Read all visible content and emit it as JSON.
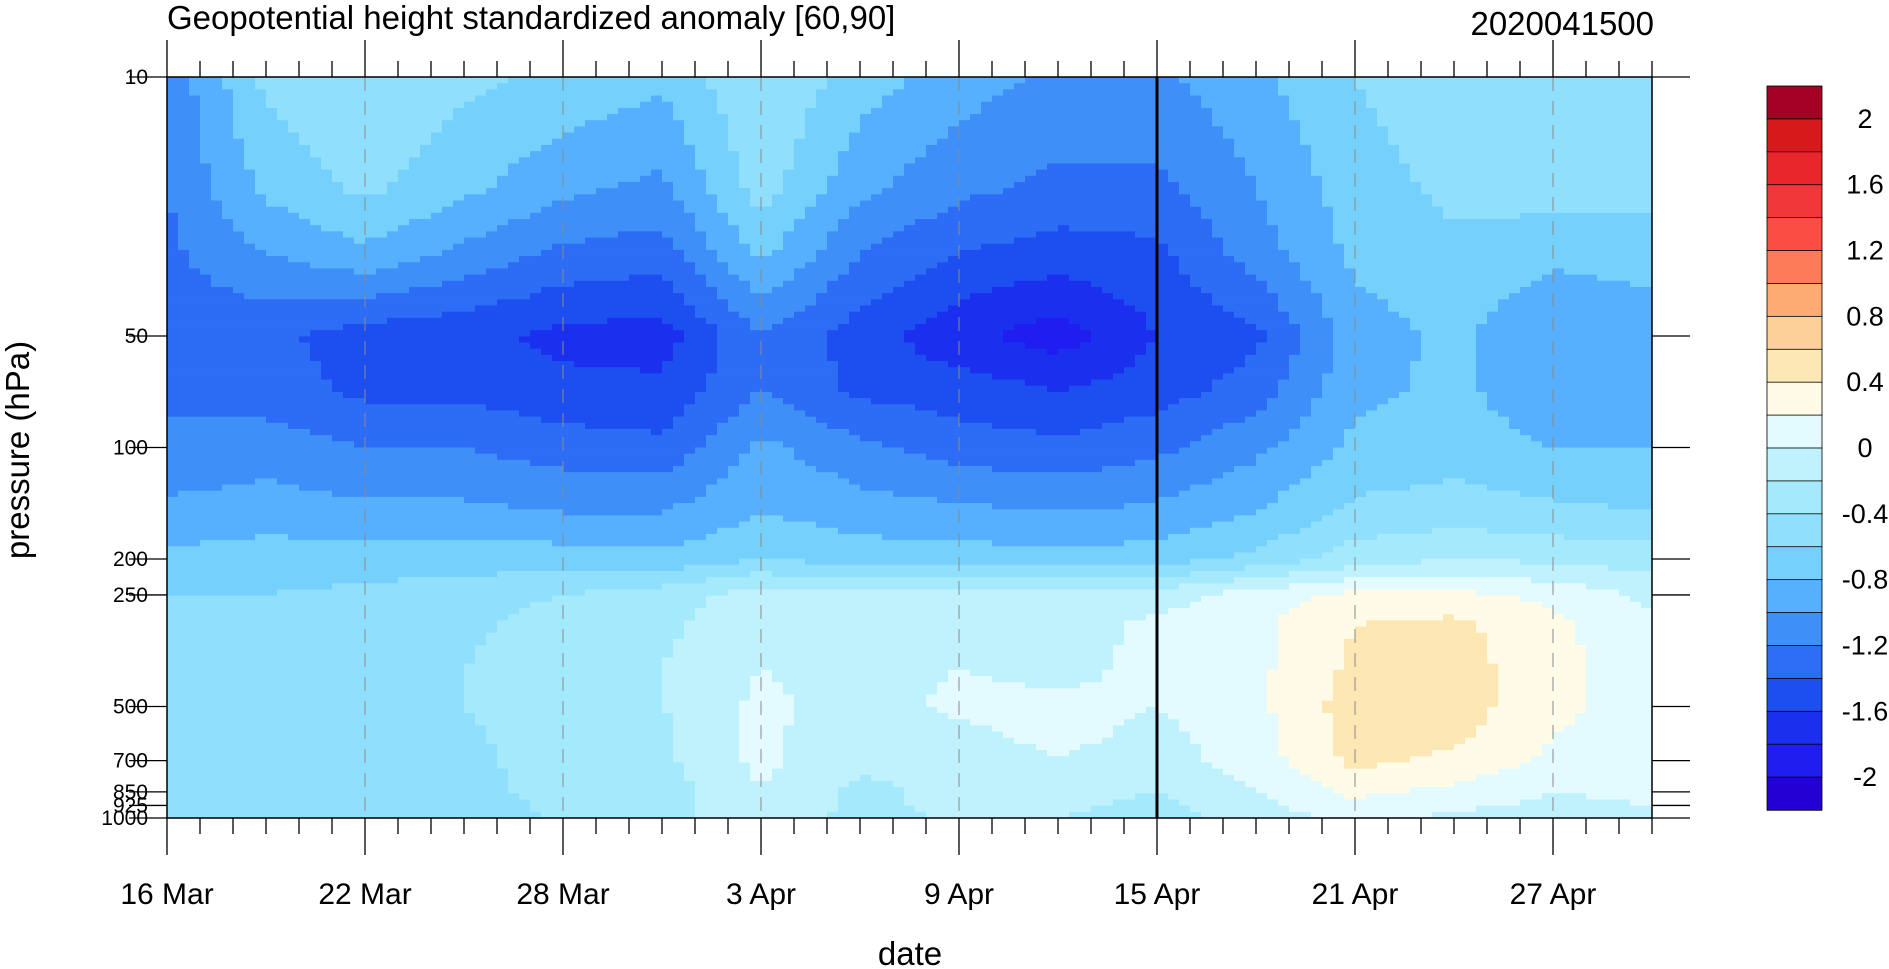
{
  "chart_data": {
    "type": "heatmap",
    "title": "Geopotential height standardized anomaly [60,90]",
    "subtitle_right": "2020041500",
    "xlabel": "date",
    "ylabel": "pressure (hPa)",
    "x_tick_labels": [
      "16 Mar",
      "22 Mar",
      "28 Mar",
      "3 Apr",
      "9 Apr",
      "15 Apr",
      "21 Apr",
      "27 Apr"
    ],
    "x_tick_days": [
      0,
      6,
      12,
      18,
      24,
      30,
      36,
      42
    ],
    "x_range_days": [
      0,
      45
    ],
    "analysis_day": 30,
    "pressure_levels": [
      10,
      20,
      30,
      50,
      70,
      100,
      150,
      200,
      250,
      300,
      400,
      500,
      600,
      700,
      850,
      925,
      1000
    ],
    "y_tick_labels": [
      "10",
      "50",
      "100",
      "200",
      "250",
      "500",
      "700",
      "850",
      "925",
      "1000"
    ],
    "y_tick_values": [
      10,
      50,
      100,
      200,
      250,
      500,
      700,
      850,
      925,
      1000
    ],
    "y_scale": "log-pressure",
    "grid": "dashed vertical lines at date ticks",
    "colorbar": {
      "labels": [
        "2",
        "1.6",
        "1.2",
        "0.8",
        "0.4",
        "0",
        "-0.4",
        "-0.8",
        "-1.2",
        "-1.6",
        "-2"
      ],
      "label_values": [
        2,
        1.6,
        1.2,
        0.8,
        0.4,
        0,
        -0.4,
        -0.8,
        -1.2,
        -1.6,
        -2
      ],
      "levels": [
        2.2,
        2.0,
        1.8,
        1.6,
        1.4,
        1.2,
        1.0,
        0.8,
        0.6,
        0.4,
        0.2,
        0,
        -0.2,
        -0.4,
        -0.6,
        -0.8,
        -1.0,
        -1.2,
        -1.4,
        -1.6,
        -1.8,
        -2.0,
        -2.2
      ],
      "colors": [
        "#a50026",
        "#d7191c",
        "#e8262b",
        "#f2373a",
        "#fc4d44",
        "#fe7b5a",
        "#fdab72",
        "#fdd09a",
        "#fde7b5",
        "#fffbe6",
        "#e3fbfe",
        "#bff2fc",
        "#a5e9fd",
        "#90e0fd",
        "#75d1fc",
        "#56b0fd",
        "#3f8ff9",
        "#2d6cf5",
        "#1d4ff0",
        "#1b30ef",
        "#1f1df0",
        "#2400d4"
      ]
    },
    "series": [
      {
        "days": [
          0,
          3,
          6,
          9,
          12,
          15,
          18,
          21,
          24,
          27,
          30,
          33,
          36,
          39,
          42,
          45
        ],
        "values": [
          [
            -1.15,
            -0.55,
            -0.4,
            -0.55,
            -0.65,
            -0.75,
            -0.4,
            -0.7,
            -0.9,
            -1.05,
            -1.05,
            -0.85,
            -0.6,
            -0.45,
            -0.4,
            -0.45
          ],
          [
            -1.2,
            -0.75,
            -0.55,
            -0.75,
            -0.95,
            -1.05,
            -0.5,
            -0.95,
            -1.15,
            -1.25,
            -1.25,
            -1.0,
            -0.7,
            -0.55,
            -0.5,
            -0.55
          ],
          [
            -1.25,
            -1.0,
            -0.85,
            -1.05,
            -1.25,
            -1.3,
            -0.75,
            -1.2,
            -1.4,
            -1.5,
            -1.45,
            -1.1,
            -0.75,
            -0.65,
            -0.75,
            -0.7
          ],
          [
            -1.3,
            -1.35,
            -1.5,
            -1.55,
            -1.65,
            -1.7,
            -1.2,
            -1.5,
            -1.75,
            -1.9,
            -1.6,
            -1.45,
            -0.9,
            -0.75,
            -1.0,
            -0.95
          ],
          [
            -1.25,
            -1.3,
            -1.45,
            -1.45,
            -1.55,
            -1.55,
            -1.2,
            -1.45,
            -1.5,
            -1.6,
            -1.5,
            -1.3,
            -0.85,
            -0.75,
            -0.95,
            -0.9
          ],
          [
            -1.15,
            -1.1,
            -1.2,
            -1.2,
            -1.3,
            -1.35,
            -0.95,
            -1.15,
            -1.3,
            -1.35,
            -1.25,
            -1.05,
            -0.75,
            -0.7,
            -0.8,
            -0.8
          ],
          [
            -0.95,
            -0.9,
            -0.95,
            -0.95,
            -1.0,
            -1.0,
            -0.8,
            -0.9,
            -0.95,
            -1.0,
            -0.95,
            -0.8,
            -0.55,
            -0.5,
            -0.55,
            -0.6
          ],
          [
            -0.75,
            -0.7,
            -0.7,
            -0.7,
            -0.7,
            -0.75,
            -0.6,
            -0.7,
            -0.7,
            -0.75,
            -0.7,
            -0.55,
            -0.3,
            -0.2,
            -0.25,
            -0.3
          ],
          [
            -0.6,
            -0.6,
            -0.55,
            -0.5,
            -0.4,
            -0.3,
            -0.1,
            -0.1,
            -0.1,
            -0.15,
            -0.1,
            0.1,
            0.25,
            0.25,
            0.15,
            -0.05
          ],
          [
            -0.55,
            -0.55,
            -0.5,
            -0.45,
            -0.3,
            -0.25,
            -0.05,
            -0.05,
            -0.05,
            -0.1,
            0.05,
            0.15,
            0.4,
            0.45,
            0.25,
            0.05
          ],
          [
            -0.55,
            -0.55,
            -0.5,
            -0.4,
            -0.25,
            -0.2,
            0.0,
            -0.05,
            0.0,
            -0.05,
            0.05,
            0.15,
            0.45,
            0.5,
            0.25,
            0.1
          ],
          [
            -0.55,
            -0.55,
            -0.5,
            -0.4,
            -0.25,
            -0.2,
            0.05,
            -0.1,
            0.05,
            0.05,
            0.0,
            0.15,
            0.5,
            0.5,
            0.25,
            0.1
          ],
          [
            -0.55,
            -0.55,
            -0.55,
            -0.45,
            -0.25,
            -0.25,
            0.05,
            -0.15,
            -0.05,
            0.05,
            -0.05,
            0.1,
            0.5,
            0.45,
            0.2,
            0.1
          ],
          [
            -0.55,
            -0.55,
            -0.55,
            -0.45,
            -0.3,
            -0.25,
            0.05,
            -0.15,
            -0.1,
            0.0,
            -0.1,
            0.1,
            0.45,
            0.35,
            0.15,
            0.05
          ],
          [
            -0.55,
            -0.6,
            -0.55,
            -0.5,
            -0.3,
            -0.3,
            0.0,
            -0.25,
            -0.15,
            -0.1,
            -0.2,
            0.0,
            0.25,
            0.15,
            0.0,
            0.05
          ],
          [
            -0.55,
            -0.6,
            -0.55,
            -0.5,
            -0.35,
            -0.3,
            0.0,
            -0.25,
            -0.15,
            -0.15,
            -0.25,
            -0.05,
            0.15,
            0.05,
            -0.05,
            0.0
          ],
          [
            -0.6,
            -0.6,
            -0.6,
            -0.55,
            -0.35,
            -0.3,
            0.0,
            -0.3,
            -0.15,
            -0.2,
            -0.3,
            -0.1,
            0.05,
            -0.05,
            -0.15,
            -0.05
          ]
        ]
      }
    ]
  }
}
